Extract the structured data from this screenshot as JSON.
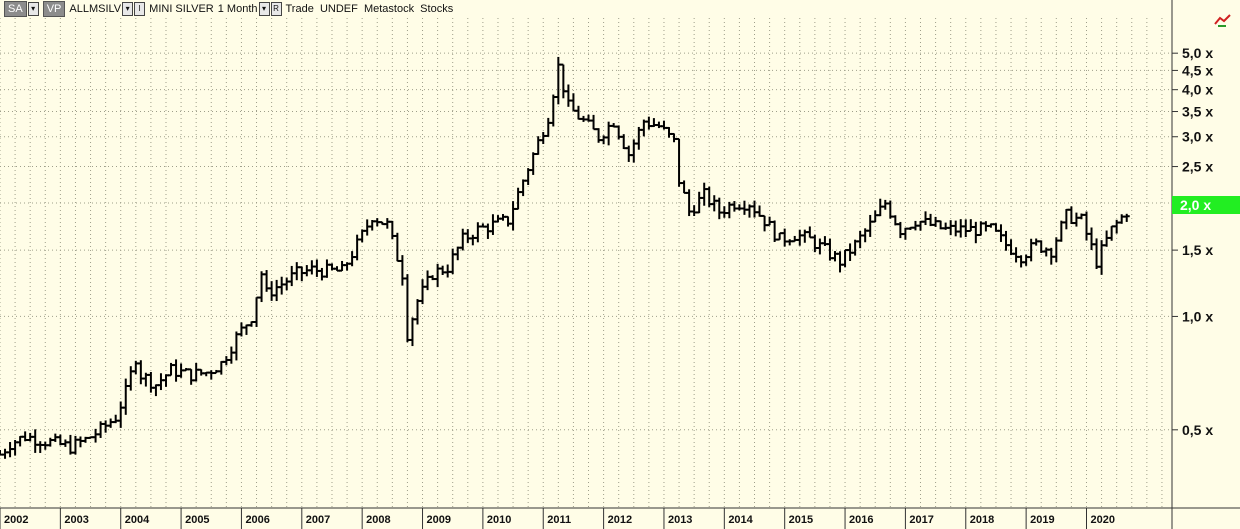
{
  "toolbar": {
    "sa_button": "SA",
    "vp_button": "VP",
    "symbol": "ALLMSILV",
    "i_label": "I",
    "instrument": "MINI SILVER",
    "period": "1 Month",
    "r_label": "R",
    "rest": "Trade  UNDEF  Metastock  Stocks"
  },
  "chart_data": {
    "type": "ohlc",
    "title": "",
    "xlabel": "",
    "ylabel": "",
    "yscale": "log",
    "ylim": [
      0.31,
      6.2
    ],
    "xlim": [
      "2002-01",
      "2021-06"
    ],
    "grid": true,
    "last_price_label": "2,0 x",
    "last_price_value": 2.0,
    "y_ticks": [
      {
        "value": 5.0,
        "label": "5,0 x"
      },
      {
        "value": 4.5,
        "label": "4,5 x"
      },
      {
        "value": 4.0,
        "label": "4,0 x"
      },
      {
        "value": 3.5,
        "label": "3,5 x"
      },
      {
        "value": 3.0,
        "label": "3,0 x"
      },
      {
        "value": 2.5,
        "label": "2,5 x"
      },
      {
        "value": 1.5,
        "label": "1,5 x"
      },
      {
        "value": 1.0,
        "label": "1,0 x"
      },
      {
        "value": 0.5,
        "label": "0,5 x"
      }
    ],
    "x_ticks": [
      "2002",
      "2003",
      "2004",
      "2005",
      "2006",
      "2007",
      "2008",
      "2009",
      "2010",
      "2011",
      "2012",
      "2013",
      "2014",
      "2015",
      "2016",
      "2017",
      "2018",
      "2019",
      "2020"
    ],
    "series": [
      {
        "x": [
          "2002-01",
          "2002-03",
          "2002-06",
          "2002-09",
          "2002-12",
          "2003-03",
          "2003-06",
          "2003-09",
          "2003-12",
          "2004-02",
          "2004-04",
          "2004-05",
          "2004-08",
          "2004-11",
          "2005-03",
          "2005-06",
          "2005-09",
          "2005-12",
          "2006-03",
          "2006-05",
          "2006-06",
          "2006-09",
          "2006-12",
          "2007-03",
          "2007-06",
          "2007-09",
          "2007-12",
          "2008-03",
          "2008-06",
          "2008-09",
          "2008-10",
          "2008-12",
          "2009-03",
          "2009-06",
          "2009-09",
          "2009-12",
          "2010-03",
          "2010-06",
          "2010-09",
          "2010-12",
          "2011-02",
          "2011-04",
          "2011-06",
          "2011-09",
          "2011-12",
          "2012-03",
          "2012-06",
          "2012-09",
          "2012-12",
          "2013-03",
          "2013-04",
          "2013-06",
          "2013-09",
          "2013-12",
          "2014-03",
          "2014-06",
          "2014-09",
          "2014-12",
          "2015-03",
          "2015-06",
          "2015-09",
          "2015-12",
          "2016-03",
          "2016-06",
          "2016-09",
          "2016-12",
          "2017-03",
          "2017-06",
          "2017-09",
          "2017-12",
          "2018-03",
          "2018-06",
          "2018-09",
          "2018-12",
          "2019-03",
          "2019-06",
          "2019-09",
          "2019-12",
          "2020-03",
          "2020-06",
          "2020-09"
        ],
        "close": [
          0.43,
          0.46,
          0.48,
          0.47,
          0.46,
          0.45,
          0.47,
          0.5,
          0.54,
          0.63,
          0.78,
          0.7,
          0.66,
          0.72,
          0.7,
          0.71,
          0.75,
          0.88,
          1.0,
          1.3,
          1.15,
          1.22,
          1.3,
          1.33,
          1.32,
          1.32,
          1.55,
          1.85,
          1.75,
          1.3,
          0.9,
          1.1,
          1.3,
          1.35,
          1.6,
          1.7,
          1.75,
          1.8,
          2.3,
          2.9,
          3.4,
          4.6,
          3.6,
          3.3,
          3.0,
          3.3,
          2.7,
          3.3,
          3.2,
          2.9,
          2.3,
          1.9,
          2.1,
          1.9,
          2.0,
          2.0,
          1.8,
          1.6,
          1.65,
          1.6,
          1.5,
          1.4,
          1.55,
          1.75,
          2.0,
          1.7,
          1.8,
          1.75,
          1.7,
          1.7,
          1.7,
          1.7,
          1.55,
          1.45,
          1.55,
          1.5,
          1.85,
          1.8,
          1.4,
          1.7,
          1.9
        ]
      }
    ]
  }
}
